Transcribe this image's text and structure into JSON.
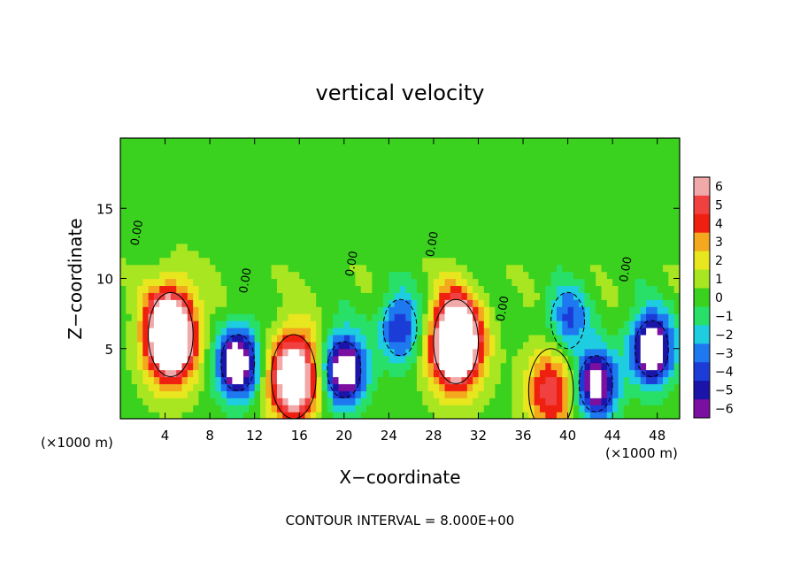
{
  "chart_data": {
    "type": "heatmap",
    "title": "vertical velocity",
    "xlabel": "X−coordinate",
    "ylabel": "Z−coordinate",
    "x_unit_label": "(×1000 m)",
    "x_unit_label_right": "(×1000 m)",
    "footer": "CONTOUR INTERVAL = 8.000E+00",
    "xlim": [
      0,
      50
    ],
    "ylim": [
      0,
      20
    ],
    "x_ticks": [
      4,
      8,
      12,
      16,
      20,
      24,
      28,
      32,
      36,
      40,
      44,
      48
    ],
    "y_ticks": [
      5,
      10,
      15
    ],
    "colorbar": {
      "levels": [
        "6",
        "5",
        "4",
        "3",
        "2",
        "1",
        "0",
        "−1",
        "−2",
        "−3",
        "−4",
        "−5",
        "−6"
      ],
      "range": [
        -6,
        6
      ]
    },
    "contour_labels": [
      "0.00",
      "0.00",
      "0.00",
      "0.00",
      "0.00",
      "0.00"
    ],
    "features": [
      {
        "kind": "updraft",
        "x": 4.5,
        "z": 6.0,
        "peak": 12
      },
      {
        "kind": "updraft",
        "x": 15.5,
        "z": 3.0,
        "peak": 9
      },
      {
        "kind": "updraft",
        "x": 30.0,
        "z": 5.5,
        "peak": 12
      },
      {
        "kind": "updraft",
        "x": 38.5,
        "z": 2.0,
        "peak": 5
      },
      {
        "kind": "downdraft",
        "x": 10.5,
        "z": 4.0,
        "peak": -9
      },
      {
        "kind": "downdraft",
        "x": 20.0,
        "z": 3.5,
        "peak": -9
      },
      {
        "kind": "downdraft",
        "x": 42.5,
        "z": 2.5,
        "peak": -8
      },
      {
        "kind": "downdraft",
        "x": 47.5,
        "z": 5.0,
        "peak": -9
      },
      {
        "kind": "downdraft",
        "x": 25.0,
        "z": 6.5,
        "peak": -5
      },
      {
        "kind": "downdraft",
        "x": 40.0,
        "z": 7.0,
        "peak": -4
      }
    ]
  }
}
